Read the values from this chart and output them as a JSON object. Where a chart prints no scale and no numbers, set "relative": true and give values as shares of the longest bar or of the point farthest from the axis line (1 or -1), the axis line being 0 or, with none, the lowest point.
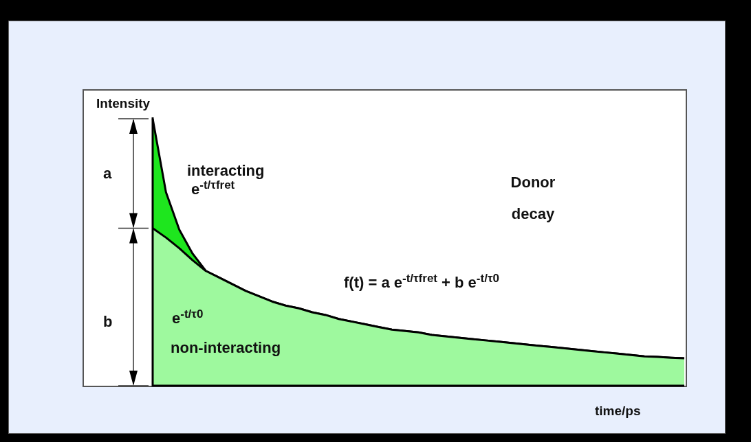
{
  "chart_data": {
    "type": "area",
    "relative": true,
    "stacked": true,
    "xlabel": "time/ps",
    "ylabel": "Intensity",
    "categories": [
      null,
      null,
      null,
      null,
      null,
      null,
      null,
      null,
      null,
      null,
      null,
      null,
      null,
      null,
      null,
      null,
      null,
      null,
      null,
      null,
      null,
      null,
      null,
      null,
      null,
      null,
      null,
      null,
      null,
      null,
      null,
      null,
      null,
      null,
      null,
      null,
      null,
      null,
      null,
      null,
      null
    ],
    "series": [
      {
        "name": "non-interacting",
        "color": "#9ef99e",
        "values": [
          0.59,
          0.555,
          0.515,
          0.47,
          0.43,
          0.405,
          0.38,
          0.355,
          0.335,
          0.315,
          0.3,
          0.29,
          0.275,
          0.265,
          0.25,
          0.24,
          0.23,
          0.22,
          0.21,
          0.205,
          0.2,
          0.19,
          0.185,
          0.18,
          0.175,
          0.17,
          0.165,
          0.16,
          0.155,
          0.15,
          0.145,
          0.14,
          0.135,
          0.13,
          0.125,
          0.12,
          0.115,
          0.11,
          0.108,
          0.105,
          0.103
        ]
      },
      {
        "name": "interacting",
        "color": "#1ee61e",
        "values": [
          0.41,
          0.17,
          0.07,
          0.025,
          0,
          0,
          0,
          0,
          0,
          0,
          0,
          0,
          0,
          0,
          0,
          0,
          0,
          0,
          0,
          0,
          0,
          0,
          0,
          0,
          0,
          0,
          0,
          0,
          0,
          0,
          0,
          0,
          0,
          0,
          0,
          0,
          0,
          0,
          0,
          0,
          0
        ]
      }
    ],
    "annotations": [
      "a",
      "b",
      "e$^{-t/τfret}$",
      "e$^{-t/τ0}$",
      "Donor decay",
      "f(t) = a e$^{-t/τfret}$ + b e$^{-t/τ0}$"
    ]
  }
}
